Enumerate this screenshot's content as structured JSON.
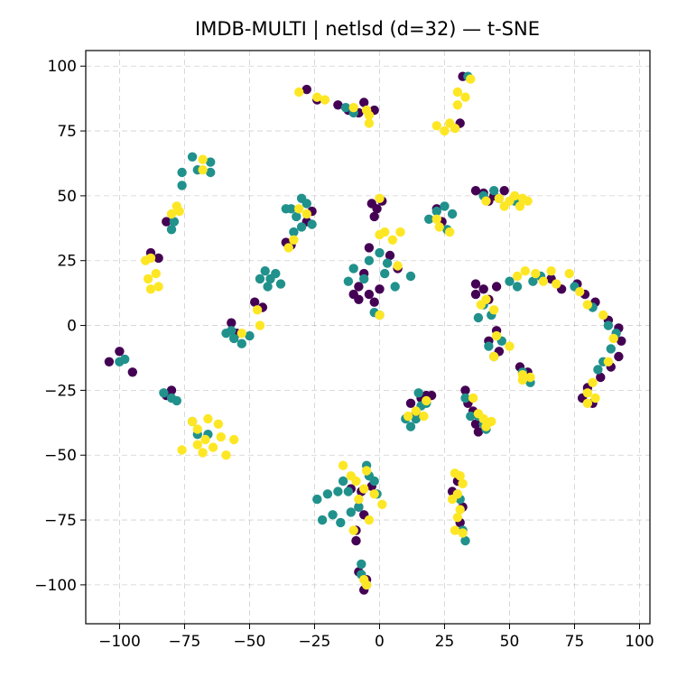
{
  "chart_data": {
    "type": "scatter",
    "title": "IMDB-MULTI | netlsd (d=32) — t-SNE",
    "xlabel": "",
    "ylabel": "",
    "xlim": [
      -113,
      104
    ],
    "ylim": [
      -115,
      106
    ],
    "xticks": [
      -100,
      -75,
      -50,
      -25,
      0,
      25,
      50,
      75,
      100
    ],
    "yticks": [
      -100,
      -75,
      -50,
      -25,
      0,
      25,
      50,
      75,
      100
    ],
    "xtick_labels": [
      "−100",
      "−75",
      "−50",
      "−25",
      "0",
      "25",
      "50",
      "75",
      "100"
    ],
    "ytick_labels": [
      "−100",
      "−75",
      "−50",
      "−25",
      "0",
      "25",
      "50",
      "75",
      "100"
    ],
    "grid": true,
    "legend": "none",
    "colors": {
      "purple": "#440154",
      "teal": "#21918c",
      "yellow": "#fde725"
    },
    "series": [
      {
        "color_key": "purple",
        "points": [
          [
            -28,
            91
          ],
          [
            -24,
            87
          ],
          [
            -16,
            85
          ],
          [
            -12,
            83
          ],
          [
            -8,
            82
          ],
          [
            -6,
            86
          ],
          [
            -2,
            83
          ],
          [
            -104,
            -14
          ],
          [
            -100,
            -10
          ],
          [
            -95,
            -18
          ],
          [
            -82,
            -27
          ],
          [
            -80,
            -25
          ],
          [
            -88,
            28
          ],
          [
            -85,
            26
          ],
          [
            -82,
            40
          ],
          [
            -57,
            1
          ],
          [
            -55,
            -3
          ],
          [
            -48,
            9
          ],
          [
            -45,
            7
          ],
          [
            -36,
            32
          ],
          [
            -34,
            31
          ],
          [
            -28,
            40
          ],
          [
            -26,
            44
          ],
          [
            -3,
            47
          ],
          [
            -1,
            45
          ],
          [
            1,
            48
          ],
          [
            -2,
            42
          ],
          [
            -4,
            30
          ],
          [
            4,
            27
          ],
          [
            7,
            22
          ],
          [
            -6,
            20
          ],
          [
            -8,
            15
          ],
          [
            -4,
            12
          ],
          [
            0,
            14
          ],
          [
            -10,
            12
          ],
          [
            -2,
            9
          ],
          [
            -8,
            10
          ],
          [
            32,
            96
          ],
          [
            31,
            78
          ],
          [
            22,
            45
          ],
          [
            24,
            40
          ],
          [
            37,
            52
          ],
          [
            40,
            51
          ],
          [
            44,
            50
          ],
          [
            48,
            52
          ],
          [
            42,
            48
          ],
          [
            37,
            16
          ],
          [
            37,
            12
          ],
          [
            40,
            14
          ],
          [
            42,
            10
          ],
          [
            45,
            15
          ],
          [
            66,
            18
          ],
          [
            70,
            14
          ],
          [
            76,
            16
          ],
          [
            79,
            12
          ],
          [
            83,
            9
          ],
          [
            88,
            2
          ],
          [
            92,
            -1
          ],
          [
            93,
            -6
          ],
          [
            92,
            -12
          ],
          [
            89,
            -16
          ],
          [
            85,
            -20
          ],
          [
            80,
            -24
          ],
          [
            78,
            -28
          ],
          [
            82,
            -30
          ],
          [
            45,
            -2
          ],
          [
            42,
            -6
          ],
          [
            46,
            -10
          ],
          [
            54,
            -16
          ],
          [
            57,
            -18
          ],
          [
            14,
            -34
          ],
          [
            16,
            -28
          ],
          [
            18,
            -27
          ],
          [
            20,
            -27
          ],
          [
            12,
            -30
          ],
          [
            33,
            -25
          ],
          [
            34,
            -30
          ],
          [
            36,
            -33
          ],
          [
            37,
            -38
          ],
          [
            38,
            -41
          ],
          [
            -11,
            -63
          ],
          [
            -8,
            -70
          ],
          [
            -6,
            -73
          ],
          [
            -9,
            -79
          ],
          [
            -9,
            -83
          ],
          [
            -8,
            -95
          ],
          [
            -5,
            -98
          ],
          [
            -6,
            -102
          ],
          [
            -7,
            -64
          ],
          [
            -3,
            -62
          ],
          [
            30,
            -60
          ],
          [
            28,
            -64
          ],
          [
            32,
            -70
          ],
          [
            31,
            -76
          ]
        ]
      },
      {
        "color_key": "teal",
        "points": [
          [
            34,
            96
          ],
          [
            -10,
            82
          ],
          [
            -13,
            84
          ],
          [
            -72,
            65
          ],
          [
            -70,
            60
          ],
          [
            -65,
            63
          ],
          [
            -65,
            59
          ],
          [
            -76,
            59
          ],
          [
            -76,
            54
          ],
          [
            -80,
            37
          ],
          [
            -79,
            40
          ],
          [
            -100,
            -14
          ],
          [
            -98,
            -13
          ],
          [
            -80,
            -28
          ],
          [
            -78,
            -29
          ],
          [
            -83,
            -26
          ],
          [
            -44,
            21
          ],
          [
            -46,
            18
          ],
          [
            -42,
            18
          ],
          [
            -40,
            20
          ],
          [
            -43,
            15
          ],
          [
            -38,
            16
          ],
          [
            -59,
            -3
          ],
          [
            -56,
            -5
          ],
          [
            -53,
            -7
          ],
          [
            -57,
            -2
          ],
          [
            -50,
            -4
          ],
          [
            -34,
            45
          ],
          [
            -30,
            49
          ],
          [
            -28,
            47
          ],
          [
            -32,
            42
          ],
          [
            -26,
            39
          ],
          [
            -36,
            45
          ],
          [
            -30,
            38
          ],
          [
            -33,
            36
          ],
          [
            -4,
            25
          ],
          [
            0,
            28
          ],
          [
            3,
            24
          ],
          [
            -10,
            22
          ],
          [
            -12,
            17
          ],
          [
            -6,
            18
          ],
          [
            2,
            20
          ],
          [
            12,
            19
          ],
          [
            6,
            15
          ],
          [
            -2,
            5
          ],
          [
            0,
            4
          ],
          [
            25,
            46
          ],
          [
            22,
            44
          ],
          [
            28,
            43
          ],
          [
            19,
            41
          ],
          [
            26,
            37
          ],
          [
            40,
            50
          ],
          [
            46,
            49
          ],
          [
            44,
            52
          ],
          [
            52,
            48
          ],
          [
            40,
            8
          ],
          [
            43,
            4
          ],
          [
            38,
            3
          ],
          [
            50,
            17
          ],
          [
            53,
            15
          ],
          [
            59,
            17
          ],
          [
            62,
            19
          ],
          [
            75,
            15
          ],
          [
            82,
            7
          ],
          [
            88,
            0
          ],
          [
            91,
            -3
          ],
          [
            89,
            -9
          ],
          [
            86,
            -14
          ],
          [
            84,
            -17
          ],
          [
            42,
            -8
          ],
          [
            44,
            -12
          ],
          [
            47,
            -6
          ],
          [
            55,
            -18
          ],
          [
            58,
            -22
          ],
          [
            12,
            -39
          ],
          [
            14,
            -36
          ],
          [
            10,
            -36
          ],
          [
            16,
            -31
          ],
          [
            18,
            -30
          ],
          [
            15,
            -26
          ],
          [
            33,
            -28
          ],
          [
            35,
            -35
          ],
          [
            38,
            -35
          ],
          [
            40,
            -38
          ],
          [
            41,
            -40
          ],
          [
            -72,
            -37
          ],
          [
            -70,
            -42
          ],
          [
            -66,
            -42
          ],
          [
            -14,
            -60
          ],
          [
            -16,
            -64
          ],
          [
            -12,
            -64
          ],
          [
            -20,
            -65
          ],
          [
            -18,
            -73
          ],
          [
            -15,
            -76
          ],
          [
            -11,
            -72
          ],
          [
            -8,
            -70
          ],
          [
            -5,
            -54
          ],
          [
            -4,
            -58
          ],
          [
            -2,
            -60
          ],
          [
            -1,
            -65
          ],
          [
            -24,
            -67
          ],
          [
            -22,
            -75
          ],
          [
            -7,
            -92
          ],
          [
            -7,
            -96
          ],
          [
            -5,
            -100
          ],
          [
            31,
            -67
          ],
          [
            32,
            -79
          ],
          [
            33,
            -83
          ]
        ]
      },
      {
        "color_key": "yellow",
        "points": [
          [
            -31,
            90
          ],
          [
            -24,
            88
          ],
          [
            -21,
            87
          ],
          [
            -10,
            84
          ],
          [
            -4,
            81
          ],
          [
            -4,
            78
          ],
          [
            -5,
            83
          ],
          [
            30,
            90
          ],
          [
            33,
            88
          ],
          [
            35,
            95
          ],
          [
            30,
            85
          ],
          [
            27,
            78
          ],
          [
            25,
            75
          ],
          [
            22,
            77
          ],
          [
            29,
            76
          ],
          [
            -68,
            64
          ],
          [
            -68,
            60
          ],
          [
            -78,
            46
          ],
          [
            -80,
            43
          ],
          [
            -77,
            44
          ],
          [
            -90,
            25
          ],
          [
            -88,
            26
          ],
          [
            -86,
            20
          ],
          [
            -89,
            18
          ],
          [
            -85,
            15
          ],
          [
            -88,
            14
          ],
          [
            -47,
            6
          ],
          [
            -46,
            0
          ],
          [
            -53,
            -3
          ],
          [
            -35,
            30
          ],
          [
            -33,
            33
          ],
          [
            -31,
            45
          ],
          [
            -28,
            43
          ],
          [
            0,
            49
          ],
          [
            0,
            35
          ],
          [
            2,
            36
          ],
          [
            5,
            33
          ],
          [
            8,
            36
          ],
          [
            7,
            23
          ],
          [
            0,
            4
          ],
          [
            23,
            38
          ],
          [
            27,
            36
          ],
          [
            22,
            41
          ],
          [
            41,
            48
          ],
          [
            46,
            49
          ],
          [
            50,
            48
          ],
          [
            52,
            50
          ],
          [
            55,
            49
          ],
          [
            57,
            48
          ],
          [
            54,
            46
          ],
          [
            48,
            46
          ],
          [
            41,
            10
          ],
          [
            44,
            6
          ],
          [
            39,
            8
          ],
          [
            53,
            19
          ],
          [
            56,
            21
          ],
          [
            60,
            20
          ],
          [
            63,
            17
          ],
          [
            66,
            21
          ],
          [
            68,
            16
          ],
          [
            73,
            20
          ],
          [
            77,
            13
          ],
          [
            80,
            8
          ],
          [
            86,
            4
          ],
          [
            90,
            -5
          ],
          [
            88,
            -14
          ],
          [
            82,
            -22
          ],
          [
            80,
            -30
          ],
          [
            83,
            -28
          ],
          [
            80,
            -26
          ],
          [
            45,
            -4
          ],
          [
            44,
            -12
          ],
          [
            50,
            -8
          ],
          [
            55,
            -19
          ],
          [
            58,
            -20
          ],
          [
            55,
            -21
          ],
          [
            14,
            -33
          ],
          [
            11,
            -35
          ],
          [
            17,
            -35
          ],
          [
            18,
            -29
          ],
          [
            36,
            -28
          ],
          [
            38,
            -34
          ],
          [
            40,
            -36
          ],
          [
            41,
            -39
          ],
          [
            43,
            -37
          ],
          [
            -72,
            -37
          ],
          [
            -70,
            -40
          ],
          [
            -66,
            -36
          ],
          [
            -62,
            -38
          ],
          [
            -61,
            -43
          ],
          [
            -67,
            -44
          ],
          [
            -70,
            -46
          ],
          [
            -64,
            -47
          ],
          [
            -59,
            -50
          ],
          [
            -68,
            -49
          ],
          [
            -56,
            -44
          ],
          [
            -76,
            -48
          ],
          [
            -14,
            -54
          ],
          [
            -11,
            -58
          ],
          [
            -9,
            -60
          ],
          [
            -6,
            -63
          ],
          [
            -2,
            -65
          ],
          [
            1,
            -69
          ],
          [
            -4,
            -75
          ],
          [
            -10,
            -79
          ],
          [
            -5,
            -56
          ],
          [
            -8,
            -67
          ],
          [
            -6,
            -98
          ],
          [
            -5,
            -100
          ],
          [
            29,
            -57
          ],
          [
            31,
            -58
          ],
          [
            32,
            -61
          ],
          [
            30,
            -65
          ],
          [
            31,
            -71
          ],
          [
            30,
            -74
          ],
          [
            29,
            -79
          ],
          [
            32,
            -80
          ],
          [
            28,
            -67
          ]
        ]
      }
    ]
  }
}
